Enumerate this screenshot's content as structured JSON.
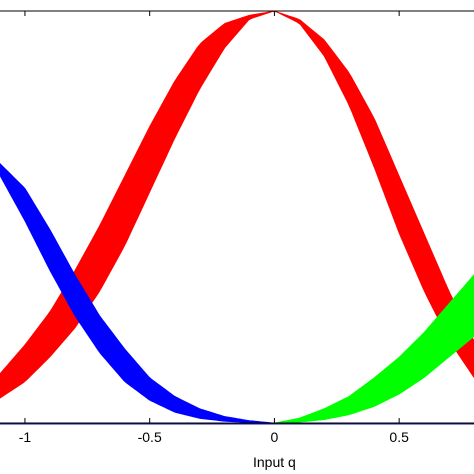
{
  "chart_data": {
    "type": "area",
    "title": "",
    "xlabel": "Input q",
    "ylabel": "",
    "xlim": [
      -1.1,
      0.8
    ],
    "ylim": [
      0,
      1
    ],
    "grid": false,
    "legend": "none",
    "x_ticks": [
      {
        "value": -1,
        "label": "-1"
      },
      {
        "value": -0.5,
        "label": "-0.5"
      },
      {
        "value": 0,
        "label": "0"
      },
      {
        "value": 0.5,
        "label": "0.5"
      }
    ],
    "series": [
      {
        "color": "#ff0000",
        "center": 0,
        "x": [
          -1.1,
          -1.0,
          -0.9,
          -0.8,
          -0.7,
          -0.6,
          -0.5,
          -0.4,
          -0.3,
          -0.2,
          -0.1,
          0.0,
          0.1,
          0.2,
          0.3,
          0.4,
          0.5,
          0.6,
          0.7,
          0.8
        ],
        "upper": [
          0.12,
          0.19,
          0.27,
          0.37,
          0.48,
          0.6,
          0.72,
          0.83,
          0.92,
          0.97,
          0.99,
          1.0,
          0.98,
          0.93,
          0.85,
          0.74,
          0.6,
          0.46,
          0.32,
          0.2
        ],
        "lower": [
          0.06,
          0.1,
          0.16,
          0.23,
          0.32,
          0.43,
          0.56,
          0.69,
          0.81,
          0.91,
          0.98,
          1.0,
          0.97,
          0.89,
          0.77,
          0.62,
          0.46,
          0.32,
          0.2,
          0.11
        ]
      },
      {
        "color": "#0000ff",
        "center": -1,
        "x": [
          -1.1,
          -1.0,
          -0.9,
          -0.8,
          -0.7,
          -0.6,
          -0.5,
          -0.4,
          -0.3,
          -0.2,
          -0.1,
          0.0
        ],
        "upper": [
          0.63,
          0.57,
          0.47,
          0.36,
          0.26,
          0.18,
          0.11,
          0.065,
          0.035,
          0.016,
          0.006,
          0.0
        ],
        "lower": [
          0.6,
          0.49,
          0.37,
          0.26,
          0.17,
          0.1,
          0.055,
          0.026,
          0.011,
          0.004,
          0.001,
          0.0
        ]
      },
      {
        "color": "#00ff00",
        "center": 1,
        "x": [
          0.0,
          0.1,
          0.2,
          0.3,
          0.4,
          0.5,
          0.6,
          0.7,
          0.8
        ],
        "upper": [
          0.0,
          0.012,
          0.035,
          0.065,
          0.11,
          0.16,
          0.22,
          0.29,
          0.36
        ],
        "lower": [
          0.0,
          0.002,
          0.008,
          0.02,
          0.04,
          0.07,
          0.11,
          0.16,
          0.21
        ]
      }
    ]
  }
}
